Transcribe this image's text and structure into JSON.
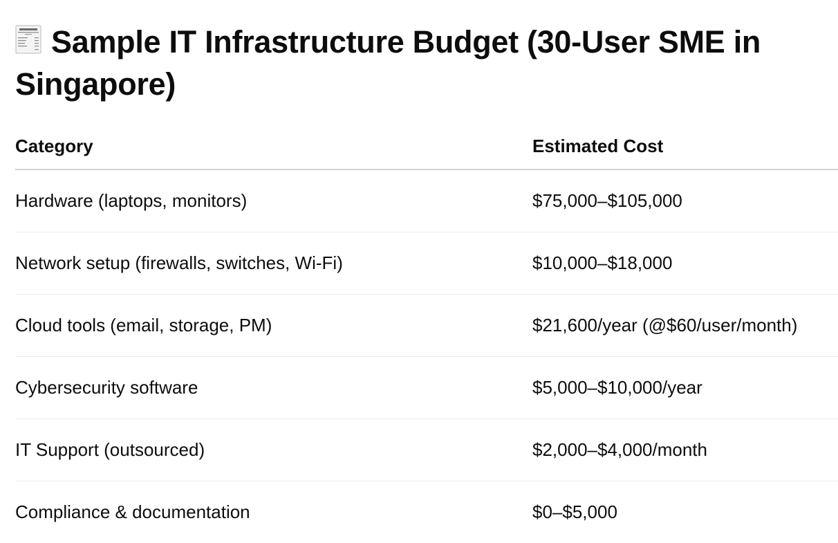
{
  "heading": {
    "icon": "receipt-icon",
    "title": "Sample IT Infrastructure Budget (30-User SME in Singapore)"
  },
  "table": {
    "headers": [
      "Category",
      "Estimated Cost"
    ],
    "rows": [
      {
        "category": "Hardware (laptops, monitors)",
        "cost": "$75,000–$105,000"
      },
      {
        "category": "Network setup (firewalls, switches, Wi-Fi)",
        "cost": "$10,000–$18,000"
      },
      {
        "category": "Cloud tools (email, storage, PM)",
        "cost": "$21,600/year (@$60/user/month)"
      },
      {
        "category": "Cybersecurity software",
        "cost": "$5,000–$10,000/year"
      },
      {
        "category": "IT Support (outsourced)",
        "cost": "$2,000–$4,000/month"
      },
      {
        "category": "Compliance & documentation",
        "cost": "$0–$5,000"
      }
    ]
  }
}
